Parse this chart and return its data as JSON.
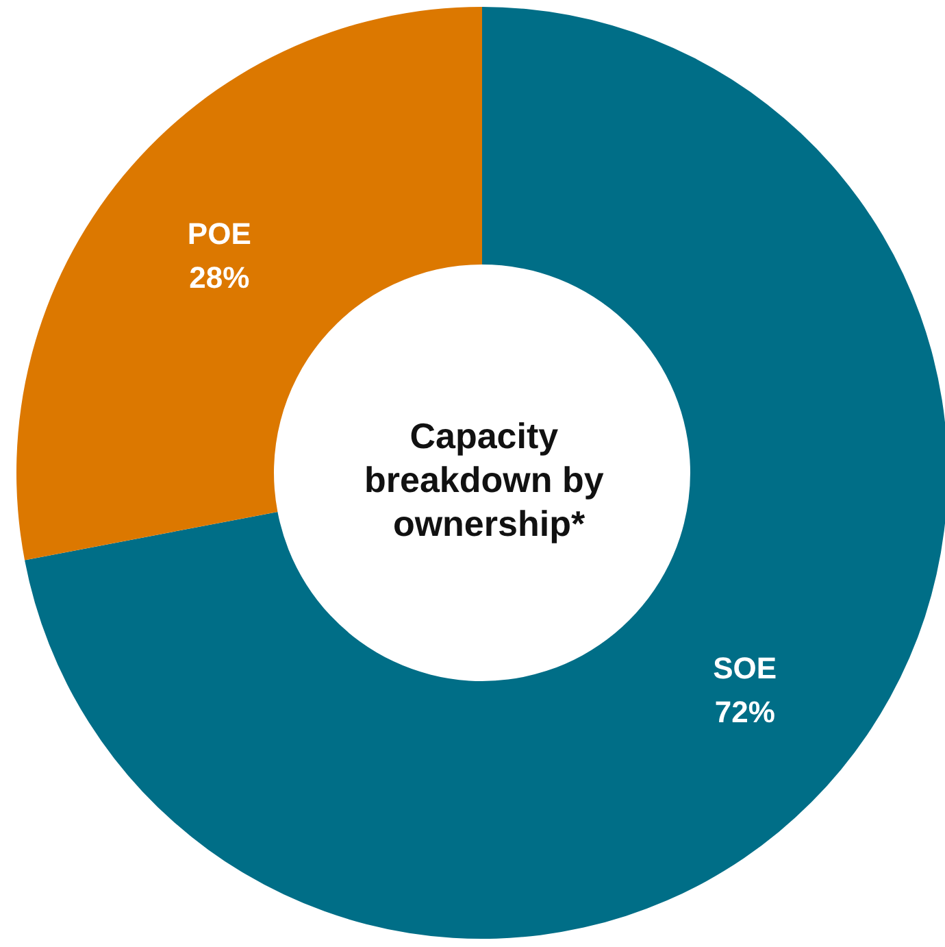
{
  "chart_data": {
    "type": "donut",
    "title": "Capacity breakdown by ownership*",
    "categories": [
      "SOE",
      "POE"
    ],
    "values": [
      72,
      28
    ],
    "colors": [
      "#006e87",
      "#dc7800"
    ],
    "value_labels": [
      "72%",
      "28%"
    ]
  }
}
